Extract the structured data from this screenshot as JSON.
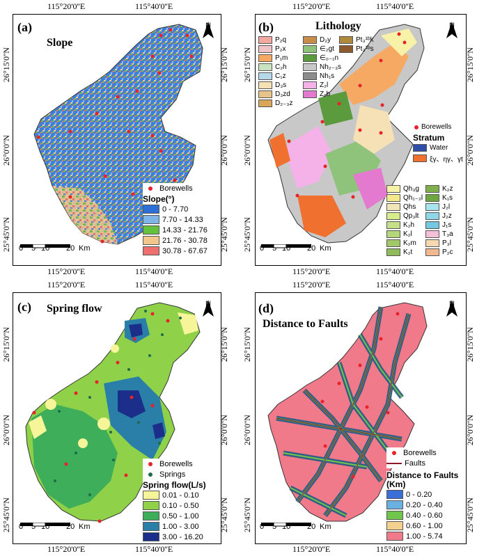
{
  "coords": {
    "lon_ticks": [
      "115°20'0''E",
      "115°40'0''E"
    ],
    "lat_ticks": [
      "26°15'0''N",
      "26°0'0''N",
      "25°45'0''N"
    ]
  },
  "panels": {
    "a": {
      "label": "(a)",
      "title": "Slope",
      "legend_title": "Slope(°)",
      "borewells": "Borewells",
      "classes": [
        {
          "label": "0 - 7.70",
          "color": "#2c6fd6"
        },
        {
          "label": "7.70 - 14.33",
          "color": "#7fb5e6"
        },
        {
          "label": "14.33 - 21.76",
          "color": "#63c23d"
        },
        {
          "label": "21.76 - 30.78",
          "color": "#f3c68a"
        },
        {
          "label": "30.78 - 67.67",
          "color": "#f07070"
        }
      ]
    },
    "b": {
      "label": "(b)",
      "title": "Lithology",
      "borewells": "Borewells",
      "stratum": "Stratum",
      "water": "Water",
      "intrusive": "ξγ、ηγ、γt",
      "units_col1": [
        {
          "label": "P₂q",
          "color": "#f4a9a0"
        },
        {
          "label": "P₂x",
          "color": "#f0c3c9"
        },
        {
          "label": "P₁m",
          "color": "#f5a962"
        },
        {
          "label": "C₂h",
          "color": "#c9e3c0"
        },
        {
          "label": "C₁z",
          "color": "#b7d8e8"
        },
        {
          "label": "D₃s",
          "color": "#f6e0b5"
        },
        {
          "label": "D₃zd",
          "color": "#e8c48a"
        },
        {
          "label": "D₂₋₃z",
          "color": "#d9a55b"
        }
      ],
      "units_col2": [
        {
          "label": "D₂y",
          "color": "#c98d4a"
        },
        {
          "label": "∈₂gt",
          "color": "#8fc27a"
        },
        {
          "label": "∈₀₋₁n",
          "color": "#5c9a3e"
        },
        {
          "label": "Nh₂₋₃s",
          "color": "#c8c8c8"
        },
        {
          "label": "Nh₁s",
          "color": "#8c8c8c"
        },
        {
          "label": "Z₂l",
          "color": "#f4b2e8"
        },
        {
          "label": "Z₁b",
          "color": "#e37ad0"
        }
      ],
      "units_col3": [
        {
          "label": "Pt₃¹ᵇk",
          "color": "#b08a3c"
        },
        {
          "label": "Pt₃¹ᵇs",
          "color": "#8c5a2e"
        }
      ],
      "units_bottom_a": [
        {
          "label": "Qh₃g",
          "color": "#f8f2a8"
        },
        {
          "label": "Qh₁₋₂l",
          "color": "#f4ea8c"
        },
        {
          "label": "Qhs",
          "color": "#f0e6b8"
        },
        {
          "label": "Qp₃lt",
          "color": "#d8ec8c"
        },
        {
          "label": "K₂h",
          "color": "#c6e08a"
        },
        {
          "label": "K₂l",
          "color": "#b6d67a"
        },
        {
          "label": "K₂m",
          "color": "#a2c86a"
        },
        {
          "label": "K₂t",
          "color": "#8fbb5a"
        }
      ],
      "units_bottom_b": [
        {
          "label": "K₂z",
          "color": "#7fb04c"
        },
        {
          "label": "K₁s",
          "color": "#6ea640"
        },
        {
          "label": "J₂l",
          "color": "#a8e4f0"
        },
        {
          "label": "J₂z",
          "color": "#8ed6e8"
        },
        {
          "label": "J₁s",
          "color": "#74c8e0"
        },
        {
          "label": "T₃a",
          "color": "#f4c0d8"
        },
        {
          "label": "P₃l",
          "color": "#f8d8b0"
        },
        {
          "label": "P₂c",
          "color": "#f2b890"
        }
      ]
    },
    "c": {
      "label": "(c)",
      "title": "Spring flow",
      "legend_title": "Spring flow(L/s)",
      "borewells": "Borewells",
      "springs": "Springs",
      "classes": [
        {
          "label": "0.01 - 0.10",
          "color": "#f7f59a"
        },
        {
          "label": "0.10 - 0.50",
          "color": "#8fd24a"
        },
        {
          "label": "0.50 - 1.00",
          "color": "#3fae5b"
        },
        {
          "label": "1.00 - 3.00",
          "color": "#2a7fa8"
        },
        {
          "label": "3.00 - 16.20",
          "color": "#1b2f8a"
        }
      ]
    },
    "d": {
      "label": "(d)",
      "title": "Distance to Faults",
      "legend_title": "Distance to Faults (Km)",
      "borewells": "Borewells",
      "faults": "Faults",
      "classes": [
        {
          "label": "0 - 0.20",
          "color": "#3a6fd8"
        },
        {
          "label": "0.20 - 0.40",
          "color": "#6ab0e0"
        },
        {
          "label": "0.40 - 0.60",
          "color": "#6fc64a"
        },
        {
          "label": "0.60 - 1.00",
          "color": "#f3d08e"
        },
        {
          "label": "1.00 - 5.74",
          "color": "#f07a8a"
        }
      ]
    }
  },
  "scale": {
    "ticks": [
      "0",
      "5",
      "10",
      "20"
    ],
    "unit": "Km"
  },
  "north": "N"
}
